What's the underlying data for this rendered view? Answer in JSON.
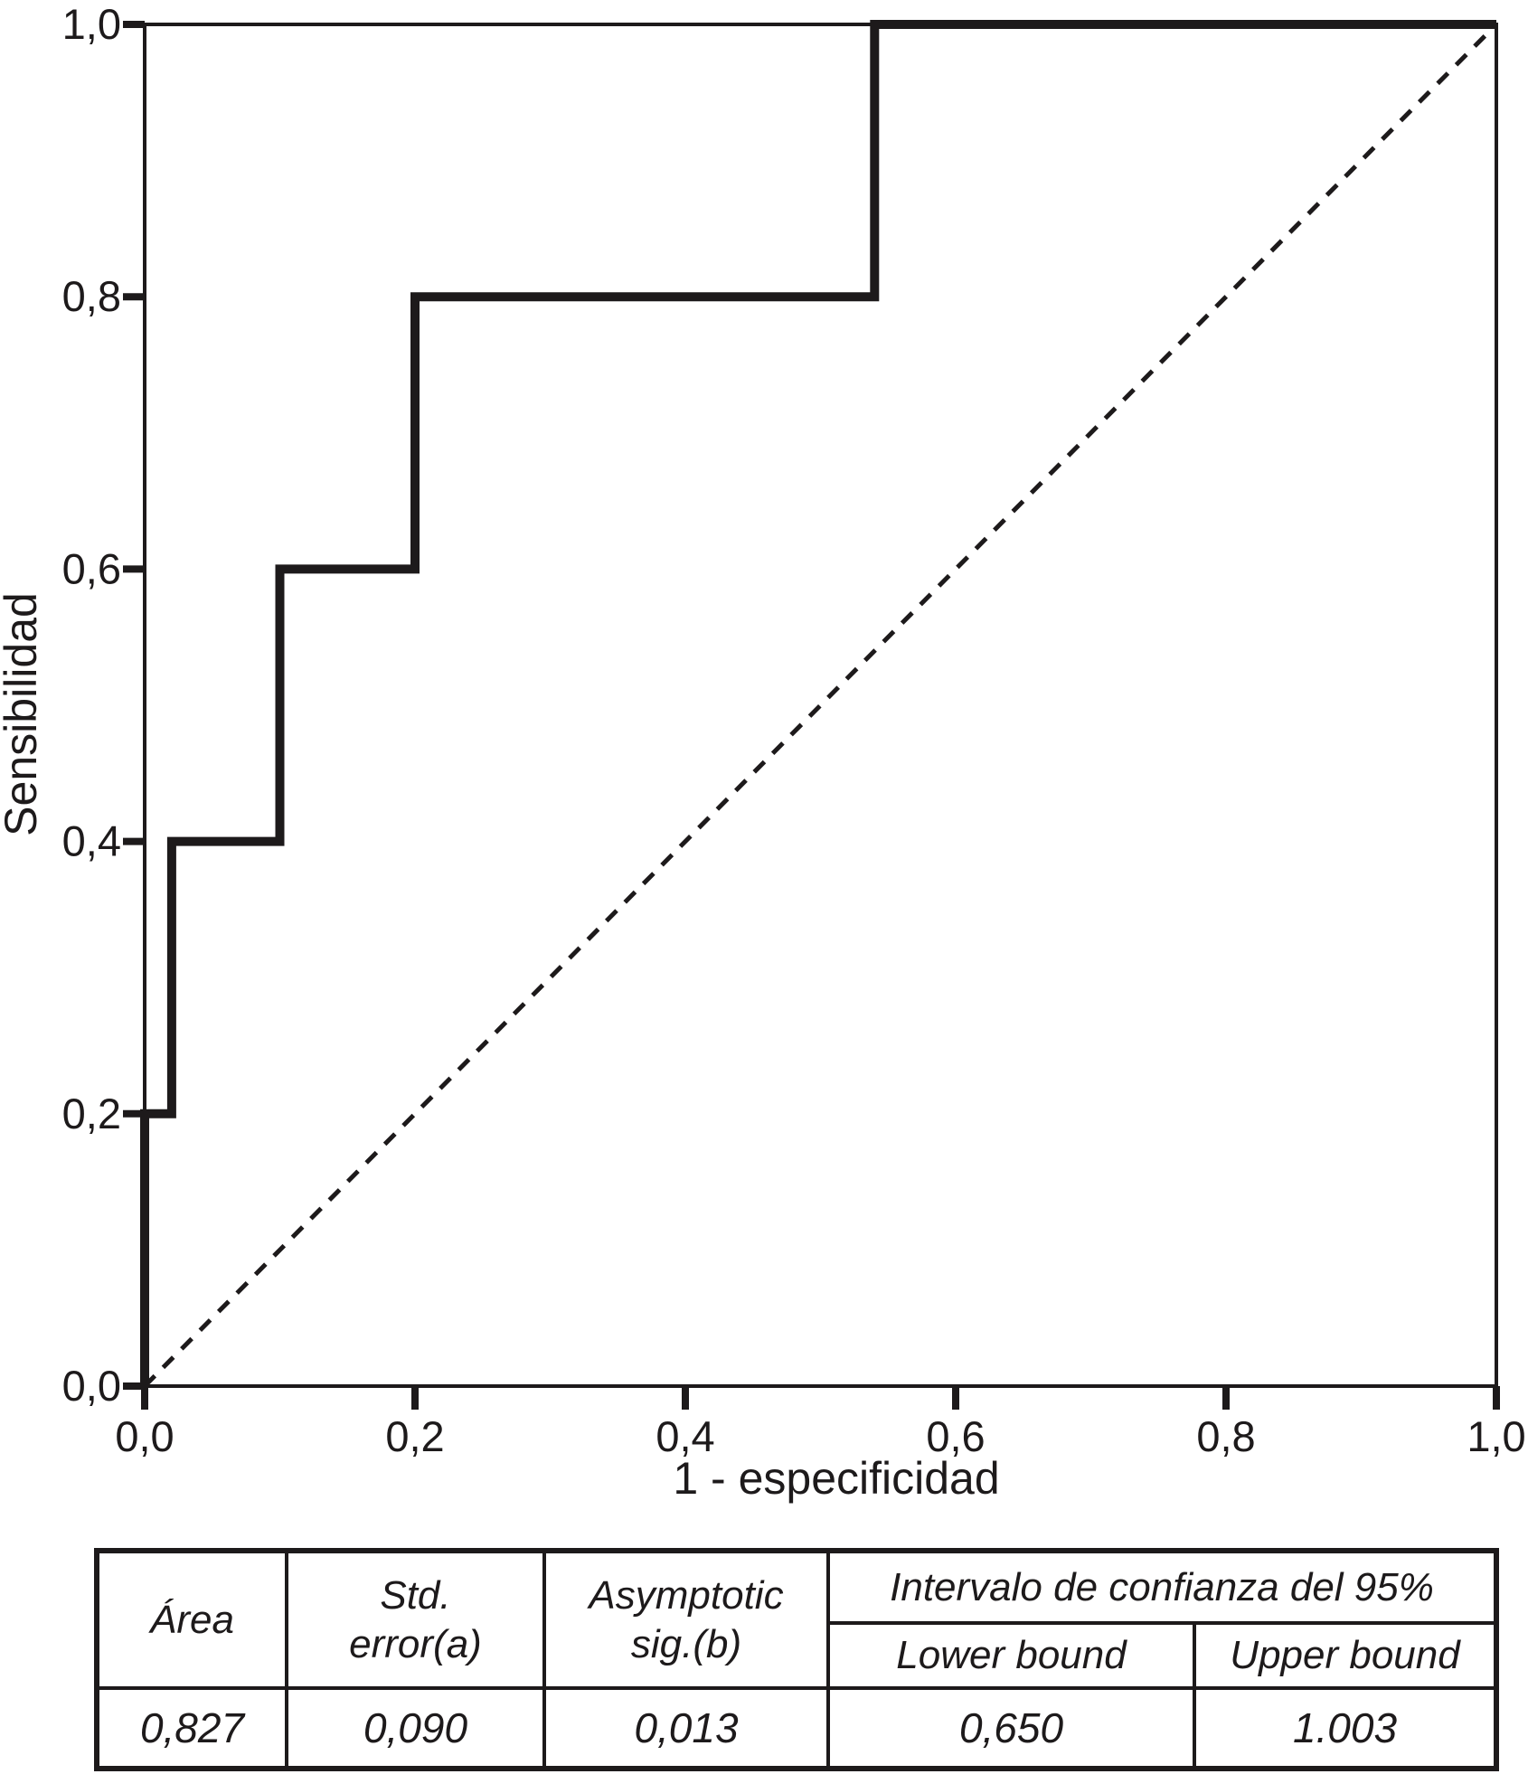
{
  "figure": {
    "background": "#ffffff",
    "ink_color": "#1d1a1b"
  },
  "chart_data": {
    "type": "line",
    "title": "",
    "xlabel": "1 - especificidad",
    "ylabel": "Sensibilidad",
    "xlim": [
      0,
      1
    ],
    "ylim": [
      0,
      1
    ],
    "grid": false,
    "frame_box": true,
    "legend_position": "none",
    "tick_values": [
      0,
      0.2,
      0.4,
      0.6,
      0.8,
      1.0
    ],
    "tick_labels": [
      "0,0",
      "0,2",
      "0,4",
      "0,6",
      "0,8",
      "1,0"
    ],
    "series": [
      {
        "name": "roc-curve",
        "line_style": "solid",
        "stroke_width": 10,
        "points": [
          [
            0,
            0
          ],
          [
            0,
            0.2
          ],
          [
            0.02,
            0.2
          ],
          [
            0.02,
            0.4
          ],
          [
            0.1,
            0.4
          ],
          [
            0.1,
            0.6
          ],
          [
            0.2,
            0.6
          ],
          [
            0.2,
            0.8
          ],
          [
            0.54,
            0.8
          ],
          [
            0.54,
            1.0
          ],
          [
            1.0,
            1.0
          ]
        ]
      },
      {
        "name": "reference-diagonal",
        "line_style": "dashed",
        "stroke_width": 5,
        "points": [
          [
            0,
            0
          ],
          [
            1,
            1
          ]
        ]
      }
    ]
  },
  "table": {
    "header": {
      "area": "Área",
      "std_error": "Std.\nerror(a)",
      "asymptotic_sig": "Asymptotic\nsig.(b)",
      "ci_group": "Intervalo de confianza del 95%",
      "lower_bound": "Lower bound",
      "upper_bound": "Upper bound"
    },
    "row": {
      "area": "0,827",
      "std_error": "0,090",
      "asymptotic_sig": "0,013",
      "lower_bound": "0,650",
      "upper_bound": "1.003"
    }
  }
}
